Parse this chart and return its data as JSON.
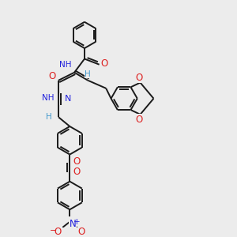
{
  "bg_color": "#ececec",
  "bond_color": "#1a1a1a",
  "bond_width": 1.4,
  "atom_colors": {
    "H": "#4499cc",
    "N": "#2222dd",
    "O": "#dd2222",
    "C": "#1a1a1a"
  },
  "font_size": 7.0,
  "figsize": [
    3.0,
    3.0
  ],
  "dpi": 100,
  "xlim": [
    0,
    10
  ],
  "ylim": [
    0,
    10
  ]
}
